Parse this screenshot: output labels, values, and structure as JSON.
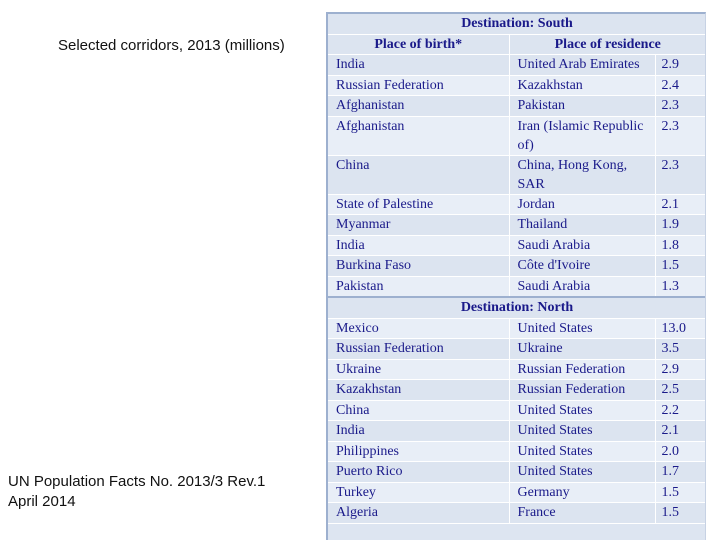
{
  "caption": "Selected corridors, 2013 (millions)",
  "source": {
    "line1": "UN Population Facts No. 2013/3 Rev.1",
    "line2": "April 2014"
  },
  "table": {
    "south_title": "Destination: South",
    "col_birth": "Place of birth*",
    "col_residence": "Place of residence",
    "south_rows": [
      {
        "birth": "India",
        "residence": "United Arab Emirates",
        "value": "2.9"
      },
      {
        "birth": "Russian Federation",
        "residence": "Kazakhstan",
        "value": "2.4"
      },
      {
        "birth": "Afghanistan",
        "residence": "Pakistan",
        "value": "2.3"
      },
      {
        "birth": "Afghanistan",
        "residence": "Iran (Islamic Republic of)",
        "value": "2.3"
      },
      {
        "birth": "China",
        "residence": "China, Hong Kong, SAR",
        "value": "2.3"
      },
      {
        "birth": "State of Palestine",
        "residence": "Jordan",
        "value": "2.1"
      },
      {
        "birth": "Myanmar",
        "residence": "Thailand",
        "value": "1.9"
      },
      {
        "birth": "India",
        "residence": "Saudi Arabia",
        "value": "1.8"
      },
      {
        "birth": "Burkina Faso",
        "residence": "Côte d'Ivoire",
        "value": "1.5"
      },
      {
        "birth": "Pakistan",
        "residence": "Saudi Arabia",
        "value": "1.3"
      }
    ],
    "north_title": "Destination: North",
    "north_rows": [
      {
        "birth": "Mexico",
        "residence": "United States",
        "value": "13.0"
      },
      {
        "birth": "Russian Federation",
        "residence": "Ukraine",
        "value": "3.5"
      },
      {
        "birth": "Ukraine",
        "residence": "Russian Federation",
        "value": "2.9"
      },
      {
        "birth": "Kazakhstan",
        "residence": "Russian Federation",
        "value": "2.5"
      },
      {
        "birth": "China",
        "residence": "United States",
        "value": "2.2"
      },
      {
        "birth": "India",
        "residence": "United States",
        "value": "2.1"
      },
      {
        "birth": "Philippines",
        "residence": "United States",
        "value": "2.0"
      },
      {
        "birth": "Puerto Rico",
        "residence": "United States",
        "value": "1.7"
      },
      {
        "birth": "Turkey",
        "residence": "Germany",
        "value": "1.5"
      },
      {
        "birth": "Algeria",
        "residence": "France",
        "value": "1.5"
      }
    ]
  }
}
